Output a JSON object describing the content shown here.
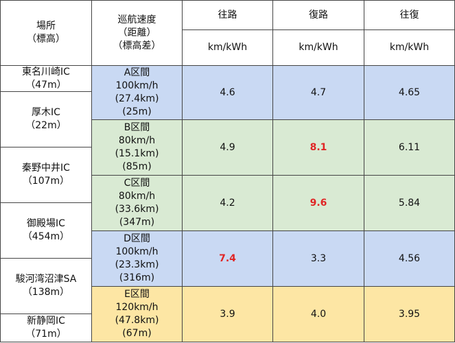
{
  "header": {
    "location": [
      "場所",
      "（標高）"
    ],
    "speed": [
      "巡航速度",
      "（距離）",
      "（標高差）"
    ],
    "columns": [
      "往路",
      "復路",
      "往復"
    ],
    "units": [
      "km/kWh",
      "km/kWh",
      "km/kWh"
    ]
  },
  "locations": [
    [
      "東名川崎IC",
      "（47m）"
    ],
    [
      "厚木IC",
      "（22m）"
    ],
    [
      "秦野中井IC",
      "（107m）"
    ],
    [
      "御殿場IC",
      "（454m）"
    ],
    [
      "駿河湾沼津SA",
      "（138m）"
    ],
    [
      "新静岡IC",
      "（71m）"
    ]
  ],
  "highlight_color": "#e02525",
  "sections": [
    {
      "lines": [
        "A区間",
        "100km/h",
        "(27.4km)",
        "(25m)"
      ],
      "color": "#c9d9f3",
      "values": [
        "4.6",
        "4.7",
        "4.65"
      ],
      "highlighted": []
    },
    {
      "lines": [
        "B区間",
        "80km/h",
        "(15.1km)",
        "(85m)"
      ],
      "color": "#d9ead3",
      "values": [
        "4.9",
        "8.1",
        "6.11"
      ],
      "highlighted": [
        1
      ]
    },
    {
      "lines": [
        "C区間",
        "80km/h",
        "(33.6km)",
        "(347m)"
      ],
      "color": "#d9ead3",
      "values": [
        "4.2",
        "9.6",
        "5.84"
      ],
      "highlighted": [
        1
      ]
    },
    {
      "lines": [
        "D区間",
        "100km/h",
        "(23.3km)",
        "(316m)"
      ],
      "color": "#c9d9f3",
      "values": [
        "7.4",
        "3.3",
        "4.56"
      ],
      "highlighted": [
        0
      ]
    },
    {
      "lines": [
        "E区間",
        "120km/h",
        "(47.8km)",
        "(67m)"
      ],
      "color": "#fde6a4",
      "values": [
        "3.9",
        "4.0",
        "3.95"
      ],
      "highlighted": []
    }
  ]
}
